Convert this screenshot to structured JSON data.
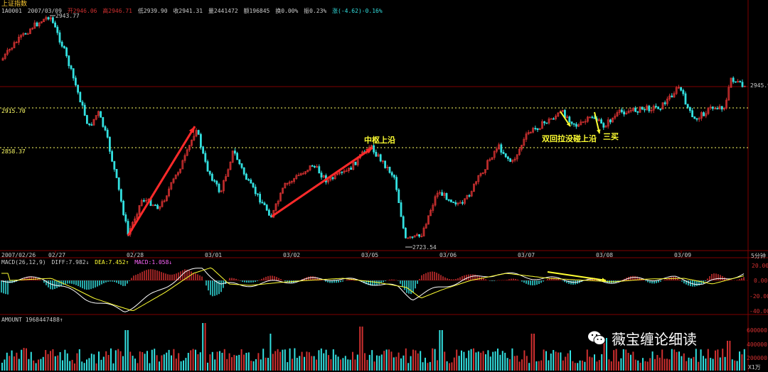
{
  "colors": {
    "up": "#d03030",
    "down": "#33e0e0",
    "dif": "#ffffff",
    "dea": "#ffff33",
    "grid": "#800000",
    "dotted": "#ffff66",
    "arrow": "#ff2a2a",
    "ann": "#ffff33"
  },
  "header": {
    "title": "上证指数",
    "code": "1A0001",
    "date": "2007/03/09",
    "open": "开2946.06",
    "high": "高2946.71",
    "low": "低2939.90",
    "close": "收2941.31",
    "volume": "量2441472",
    "amount": "额196845",
    "turnover": "换0.00%",
    "amplitude": "振0.23%",
    "change": "涨(-4.62)-0.16%"
  },
  "price_panel": {
    "high_marker": "2943.77",
    "low_marker": "2723.54",
    "level_1": "2915.70",
    "level_2": "2858.37",
    "last_price": "2945.9"
  },
  "time_axis": {
    "labels": [
      "2007/02/26",
      "02/27",
      "02/28",
      "03/01",
      "03/02",
      "03/05",
      "03/06",
      "03/07",
      "03/08",
      "03/09"
    ],
    "period": "5分钟"
  },
  "annotations": {
    "zs_top": "中枢上沿",
    "double_back": "双回拉没碰上沿",
    "third_buy": "三买"
  },
  "macd_panel": {
    "label": "MACD(26,12,9)",
    "diff": "DIFF:7.982↓",
    "dea": "DEA:7.452↑",
    "macd": "MACD:1.058↓",
    "ticks": [
      "20.00",
      "0.00",
      "-20.00",
      "-40.00"
    ]
  },
  "amount_panel": {
    "label": "AMOUNT 1968447488↑",
    "ticks": [
      "600000",
      "400000",
      "200000"
    ],
    "unit": "X1万"
  },
  "watermark": {
    "text": "薇宝缠论细读",
    "icon": "wechat-icon"
  }
}
